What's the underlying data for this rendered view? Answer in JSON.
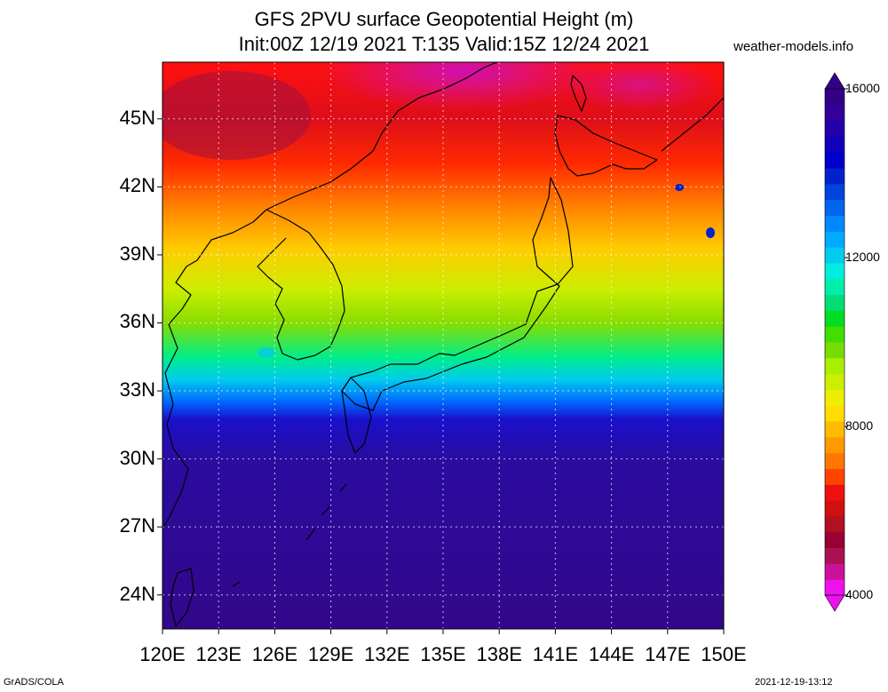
{
  "header": {
    "title_line1": "GFS 2PVU surface Geopotential Height (m)",
    "title_line2": "Init:00Z 12/19 2021 T:135 Valid:15Z 12/24 2021",
    "site": "weather-models.info"
  },
  "map": {
    "lon_range": [
      120,
      150
    ],
    "lat_range": [
      22.5,
      47.5
    ],
    "lat_labels": [
      "45N",
      "42N",
      "39N",
      "36N",
      "33N",
      "30N",
      "27N",
      "24N"
    ],
    "lat_values": [
      45,
      42,
      39,
      36,
      33,
      30,
      27,
      24
    ],
    "lon_labels": [
      "120E",
      "123E",
      "126E",
      "129E",
      "132E",
      "135E",
      "138E",
      "141E",
      "144E",
      "147E",
      "150E"
    ],
    "lon_values": [
      120,
      123,
      126,
      129,
      132,
      135,
      138,
      141,
      144,
      147,
      150
    ]
  },
  "colorbar": {
    "labels": [
      "16000",
      "12000",
      "8000",
      "4000"
    ],
    "colors": [
      "#ee11ee",
      "#cc1199",
      "#aa1155",
      "#990033",
      "#b01020",
      "#d01010",
      "#ee1010",
      "#ff4400",
      "#ff7700",
      "#ff9900",
      "#ffbb00",
      "#ffdd00",
      "#eeee00",
      "#ccee00",
      "#aaee00",
      "#77dd00",
      "#44dd00",
      "#00dd22",
      "#00dd77",
      "#00eeaa",
      "#00eedd",
      "#00ccee",
      "#00aaff",
      "#0088ff",
      "#0066ee",
      "#0044dd",
      "#0022cc",
      "#0000cc",
      "#1100bb",
      "#2200aa",
      "#330099",
      "#330088"
    ]
  },
  "footer": {
    "left": "GrADS/COLA",
    "right": "2021-12-19-13:12"
  }
}
